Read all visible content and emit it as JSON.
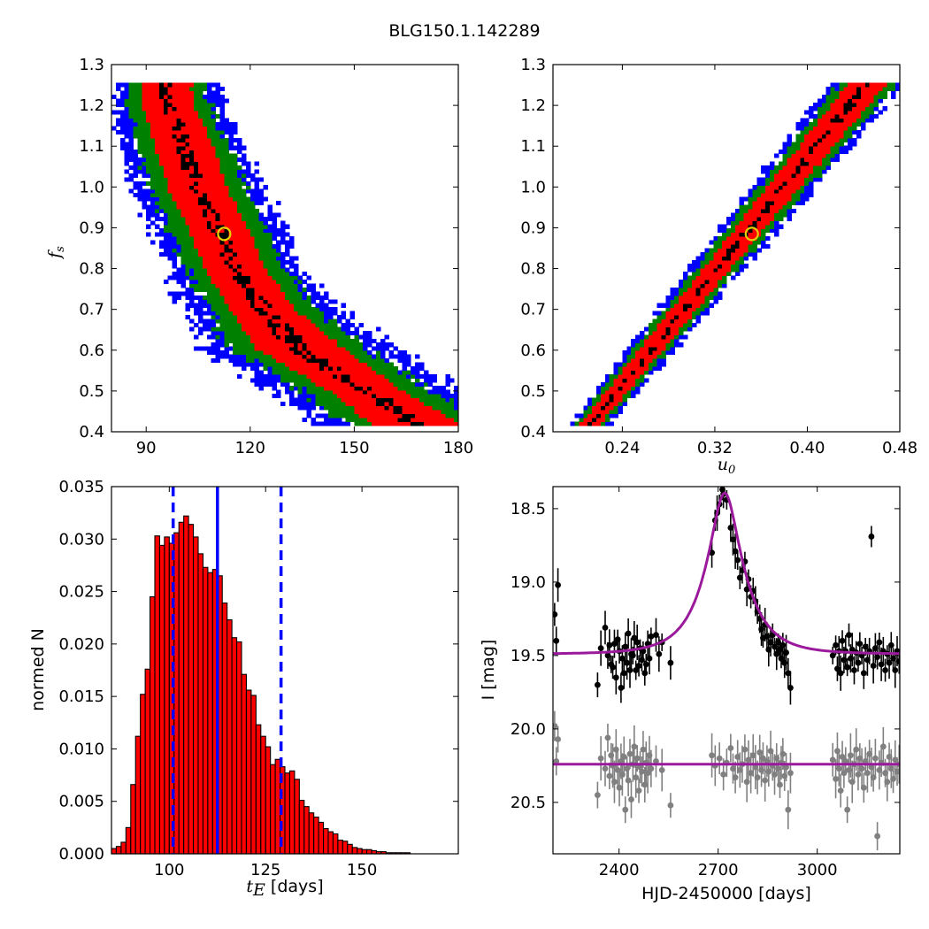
{
  "title": "BLG150.1.142289",
  "chart_data": [
    {
      "panel": "tE-fs",
      "type": "heatmap",
      "xlim": [
        80,
        180
      ],
      "ylim": [
        0.4,
        1.3
      ],
      "xticks": [
        "90",
        "120",
        "150",
        "180"
      ],
      "yticks": [
        "0.4",
        "0.5",
        "0.6",
        "0.7",
        "0.8",
        "0.9",
        "1.0",
        "1.1",
        "1.2",
        "1.3"
      ],
      "ylabel_var": "f",
      "ylabel_sub": "s",
      "colors": {
        "1sigma": "#000000",
        "2sigma": "#ff0000",
        "3sigma": "#008000",
        "4sigma": "#0000ff"
      },
      "band": [
        [
          0.42,
          167,
          12,
          9,
          10
        ],
        [
          0.5,
          153,
          10,
          10,
          11
        ],
        [
          0.6,
          134,
          12,
          9,
          11
        ],
        [
          0.7,
          123,
          9,
          8,
          8
        ],
        [
          0.8,
          115,
          8,
          7,
          7
        ],
        [
          0.9,
          110,
          8,
          7,
          7
        ],
        [
          1.0,
          104,
          8,
          7,
          6
        ],
        [
          1.1,
          100,
          8,
          6,
          6
        ],
        [
          1.2,
          96,
          7,
          6,
          5
        ],
        [
          1.25,
          95,
          7,
          5,
          5
        ]
      ],
      "best": {
        "x": 112.5,
        "y": 0.885
      }
    },
    {
      "panel": "u0-fs",
      "type": "heatmap",
      "xlim": [
        0.18,
        0.48
      ],
      "ylim": [
        0.4,
        1.3
      ],
      "xticks": [
        "0.24",
        "0.32",
        "0.40",
        "0.48"
      ],
      "yticks": [
        "0.4",
        "0.5",
        "0.6",
        "0.7",
        "0.8",
        "0.9",
        "1.0",
        "1.1",
        "1.2",
        "1.3"
      ],
      "xlabel_var": "u",
      "xlabel_sub": "0",
      "colors": {
        "1sigma": "#000000",
        "2sigma": "#ff0000",
        "3sigma": "#008000",
        "4sigma": "#0000ff"
      },
      "band": [
        [
          0.42,
          0.211,
          0.008,
          0.006,
          0.006
        ],
        [
          1.25,
          0.449,
          0.016,
          0.01,
          0.01
        ]
      ],
      "best": {
        "x": 0.352,
        "y": 0.885
      }
    },
    {
      "panel": "tE-histogram",
      "type": "bar",
      "xlim": [
        85,
        175
      ],
      "ylim": [
        0,
        0.035
      ],
      "xticks": [
        "100",
        "125",
        "150"
      ],
      "yticks": [
        "0.000",
        "0.005",
        "0.010",
        "0.015",
        "0.020",
        "0.025",
        "0.030",
        "0.035"
      ],
      "ylabel": "normed N",
      "xlabel_var": "t",
      "xlabel_sub": "E",
      "xlabel_rest": " [days]",
      "bin_start": 85,
      "bin_width": 1.25,
      "values": [
        0.0005,
        0.0007,
        0.0011,
        0.0025,
        0.0066,
        0.0112,
        0.0152,
        0.0176,
        0.0245,
        0.0303,
        0.0294,
        0.0302,
        0.0296,
        0.0306,
        0.0316,
        0.0322,
        0.0314,
        0.0302,
        0.0286,
        0.0273,
        0.0268,
        0.0271,
        0.0265,
        0.0239,
        0.0223,
        0.0206,
        0.0202,
        0.0171,
        0.0156,
        0.0151,
        0.0123,
        0.0112,
        0.0102,
        0.0085,
        0.009,
        0.0083,
        0.0077,
        0.0079,
        0.0071,
        0.0051,
        0.0045,
        0.0039,
        0.0035,
        0.003,
        0.0024,
        0.0021,
        0.0019,
        0.0013,
        0.0012,
        0.0009,
        0.0006,
        0.0005,
        0.0004,
        0.0004,
        0.0003,
        0.0002,
        0.0002,
        0.0001,
        0.0001,
        0.0001,
        0.0001,
        0.0001
      ],
      "median": 112.5,
      "lower": 101,
      "upper": 129
    },
    {
      "panel": "light-curve",
      "type": "scatter",
      "xlim": [
        2200,
        3250
      ],
      "ylim": [
        20.85,
        18.35
      ],
      "xticks": [
        "2400",
        "2700",
        "3000"
      ],
      "yticks": [
        "18.5",
        "19.0",
        "19.5",
        "20.0",
        "20.5"
      ],
      "xlabel": "HJD-2450000 [days]",
      "ylabel": "I [mag]",
      "model": {
        "t0": 2720,
        "tE": 112.5,
        "u0": 0.352,
        "fs": 0.885,
        "base": 19.49
      },
      "model_color": "#9b1a9b",
      "points_black": [
        [
          2205,
          19.22
        ],
        [
          2210,
          19.4
        ],
        [
          2215,
          19.02
        ],
        [
          2335,
          19.7
        ],
        [
          2345,
          19.45
        ],
        [
          2358,
          19.31
        ],
        [
          2366,
          19.5
        ],
        [
          2371,
          19.43
        ],
        [
          2376,
          19.56
        ],
        [
          2381,
          19.58
        ],
        [
          2386,
          19.42
        ],
        [
          2391,
          19.65
        ],
        [
          2396,
          19.39
        ],
        [
          2401,
          19.47
        ],
        [
          2406,
          19.72
        ],
        [
          2410,
          19.52
        ],
        [
          2415,
          19.62
        ],
        [
          2419,
          19.44
        ],
        [
          2424,
          19.55
        ],
        [
          2428,
          19.35
        ],
        [
          2433,
          19.6
        ],
        [
          2437,
          19.49
        ],
        [
          2442,
          19.5
        ],
        [
          2446,
          19.38
        ],
        [
          2451,
          19.6
        ],
        [
          2455,
          19.41
        ],
        [
          2460,
          19.57
        ],
        [
          2464,
          19.45
        ],
        [
          2469,
          19.53
        ],
        [
          2473,
          19.47
        ],
        [
          2478,
          19.62
        ],
        [
          2482,
          19.56
        ],
        [
          2487,
          19.42
        ],
        [
          2492,
          19.52
        ],
        [
          2497,
          19.37
        ],
        [
          2512,
          19.36
        ],
        [
          2521,
          19.49
        ],
        [
          2530,
          19.41
        ],
        [
          2556,
          19.55
        ],
        [
          2681,
          18.8
        ],
        [
          2691,
          18.58
        ],
        [
          2697,
          18.53
        ],
        [
          2704,
          18.47
        ],
        [
          2713,
          18.37
        ],
        [
          2716,
          18.4
        ],
        [
          2726,
          18.44
        ],
        [
          2738,
          18.63
        ],
        [
          2745,
          18.71
        ],
        [
          2752,
          18.79
        ],
        [
          2759,
          18.85
        ],
        [
          2766,
          18.97
        ],
        [
          2773,
          18.92
        ],
        [
          2781,
          18.86
        ],
        [
          2787,
          19.05
        ],
        [
          2792,
          18.98
        ],
        [
          2799,
          19.1
        ],
        [
          2806,
          19.06
        ],
        [
          2813,
          19.13
        ],
        [
          2819,
          19.2
        ],
        [
          2826,
          19.25
        ],
        [
          2831,
          19.32
        ],
        [
          2836,
          19.38
        ],
        [
          2842,
          19.29
        ],
        [
          2848,
          19.37
        ],
        [
          2853,
          19.46
        ],
        [
          2859,
          19.41
        ],
        [
          2865,
          19.36
        ],
        [
          2871,
          19.44
        ],
        [
          2877,
          19.49
        ],
        [
          2882,
          19.41
        ],
        [
          2887,
          19.46
        ],
        [
          2891,
          19.52
        ],
        [
          2896,
          19.43
        ],
        [
          2901,
          19.55
        ],
        [
          2906,
          19.48
        ],
        [
          2912,
          19.62
        ],
        [
          2919,
          19.72
        ],
        [
          3047,
          19.5
        ],
        [
          3056,
          19.43
        ],
        [
          3061,
          19.59
        ],
        [
          3066,
          19.47
        ],
        [
          3071,
          19.62
        ],
        [
          3076,
          19.4
        ],
        [
          3081,
          19.53
        ],
        [
          3086,
          19.47
        ],
        [
          3091,
          19.58
        ],
        [
          3096,
          19.36
        ],
        [
          3101,
          19.52
        ],
        [
          3106,
          19.46
        ],
        [
          3112,
          19.6
        ],
        [
          3118,
          19.48
        ],
        [
          3124,
          19.55
        ],
        [
          3129,
          19.42
        ],
        [
          3135,
          19.5
        ],
        [
          3141,
          19.62
        ],
        [
          3146,
          19.44
        ],
        [
          3152,
          19.53
        ],
        [
          3158,
          19.47
        ],
        [
          3164,
          18.69
        ],
        [
          3170,
          19.57
        ],
        [
          3176,
          19.45
        ],
        [
          3182,
          19.51
        ],
        [
          3188,
          19.41
        ],
        [
          3194,
          19.56
        ],
        [
          3200,
          19.47
        ],
        [
          3206,
          19.6
        ],
        [
          3212,
          19.49
        ],
        [
          3218,
          19.55
        ],
        [
          3224,
          19.43
        ],
        [
          3230,
          19.52
        ],
        [
          3236,
          19.6
        ],
        [
          3242,
          19.47
        ],
        [
          3248,
          19.54
        ]
      ],
      "points_gray": [
        [
          2205,
          19.98
        ],
        [
          2210,
          20.22
        ],
        [
          2215,
          20.07
        ],
        [
          2335,
          20.45
        ],
        [
          2345,
          20.2
        ],
        [
          2358,
          20.27
        ],
        [
          2366,
          20.06
        ],
        [
          2371,
          20.32
        ],
        [
          2376,
          20.18
        ],
        [
          2381,
          20.25
        ],
        [
          2386,
          20.36
        ],
        [
          2391,
          20.14
        ],
        [
          2396,
          20.28
        ],
        [
          2401,
          20.4
        ],
        [
          2406,
          20.22
        ],
        [
          2410,
          20.31
        ],
        [
          2415,
          20.19
        ],
        [
          2419,
          20.55
        ],
        [
          2424,
          20.27
        ],
        [
          2428,
          20.35
        ],
        [
          2433,
          20.17
        ],
        [
          2437,
          20.48
        ],
        [
          2442,
          20.24
        ],
        [
          2446,
          20.12
        ],
        [
          2451,
          20.33
        ],
        [
          2455,
          20.2
        ],
        [
          2460,
          20.42
        ],
        [
          2464,
          20.26
        ],
        [
          2469,
          20.29
        ],
        [
          2473,
          20.14
        ],
        [
          2478,
          20.38
        ],
        [
          2482,
          20.23
        ],
        [
          2487,
          20.3
        ],
        [
          2492,
          20.18
        ],
        [
          2497,
          20.27
        ],
        [
          2512,
          20.22
        ],
        [
          2530,
          20.28
        ],
        [
          2556,
          20.52
        ],
        [
          2681,
          20.18
        ],
        [
          2691,
          20.25
        ],
        [
          2704,
          20.2
        ],
        [
          2716,
          20.31
        ],
        [
          2726,
          20.23
        ],
        [
          2738,
          20.13
        ],
        [
          2745,
          20.27
        ],
        [
          2752,
          20.33
        ],
        [
          2759,
          20.19
        ],
        [
          2766,
          20.28
        ],
        [
          2773,
          20.24
        ],
        [
          2781,
          20.14
        ],
        [
          2787,
          20.36
        ],
        [
          2792,
          20.21
        ],
        [
          2799,
          20.3
        ],
        [
          2806,
          20.18
        ],
        [
          2813,
          20.26
        ],
        [
          2819,
          20.33
        ],
        [
          2826,
          20.16
        ],
        [
          2831,
          20.28
        ],
        [
          2836,
          20.2
        ],
        [
          2842,
          20.35
        ],
        [
          2848,
          20.22
        ],
        [
          2853,
          20.29
        ],
        [
          2859,
          20.15
        ],
        [
          2865,
          20.25
        ],
        [
          2871,
          20.31
        ],
        [
          2877,
          20.2
        ],
        [
          2882,
          20.27
        ],
        [
          2887,
          20.38
        ],
        [
          2891,
          20.23
        ],
        [
          2896,
          20.17
        ],
        [
          2901,
          20.32
        ],
        [
          2906,
          20.26
        ],
        [
          2912,
          20.55
        ],
        [
          2919,
          20.3
        ],
        [
          3047,
          20.21
        ],
        [
          3056,
          20.34
        ],
        [
          3061,
          20.15
        ],
        [
          3066,
          20.27
        ],
        [
          3071,
          20.42
        ],
        [
          3076,
          20.19
        ],
        [
          3081,
          20.3
        ],
        [
          3086,
          20.22
        ],
        [
          3091,
          20.55
        ],
        [
          3096,
          20.28
        ],
        [
          3101,
          20.18
        ],
        [
          3106,
          20.36
        ],
        [
          3112,
          20.24
        ],
        [
          3118,
          20.14
        ],
        [
          3124,
          20.31
        ],
        [
          3129,
          20.2
        ],
        [
          3135,
          20.27
        ],
        [
          3141,
          20.4
        ],
        [
          3146,
          20.22
        ],
        [
          3152,
          20.3
        ],
        [
          3158,
          20.17
        ],
        [
          3164,
          20.26
        ],
        [
          3170,
          20.33
        ],
        [
          3176,
          20.2
        ],
        [
          3182,
          20.73
        ],
        [
          3188,
          20.28
        ],
        [
          3194,
          20.23
        ],
        [
          3200,
          20.12
        ],
        [
          3206,
          20.3
        ],
        [
          3212,
          20.36
        ],
        [
          3218,
          20.19
        ],
        [
          3224,
          20.27
        ],
        [
          3230,
          20.34
        ],
        [
          3236,
          20.21
        ],
        [
          3242,
          20.29
        ],
        [
          3248,
          20.24
        ]
      ],
      "gray_model_mag": 20.24
    }
  ]
}
